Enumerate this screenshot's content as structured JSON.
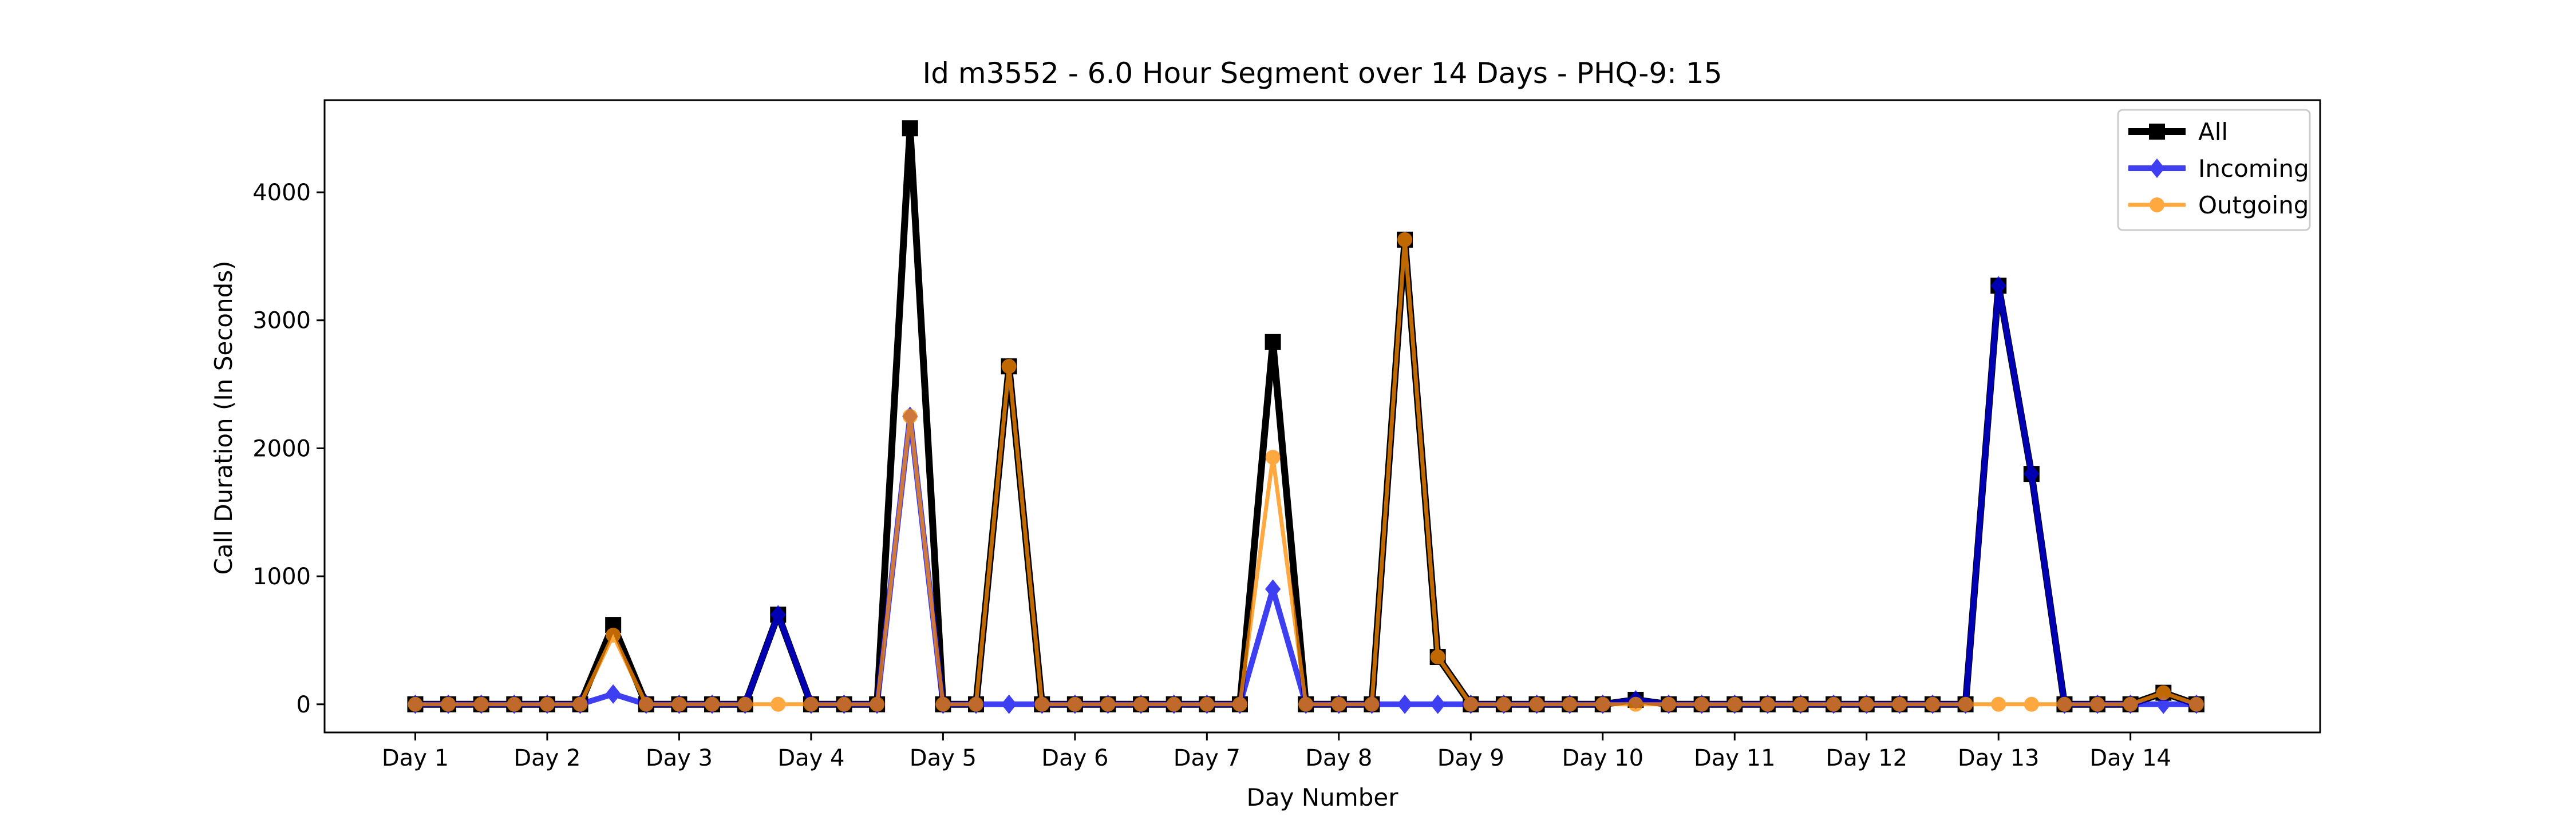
{
  "chart_data": {
    "type": "line",
    "title": "Id m3552 - 6.0 Hour Segment over 14 Days - PHQ-9: 15",
    "xlabel": "Day Number",
    "ylabel": "Call Duration (In Seconds)",
    "ylim": [
      -220,
      4720
    ],
    "xlim": [
      -2.75,
      57.75
    ],
    "yticks": [
      0,
      1000,
      2000,
      3000,
      4000
    ],
    "xticks": [
      "Day 1",
      "Day 2",
      "Day 3",
      "Day 4",
      "Day 5",
      "Day 6",
      "Day 7",
      "Day 8",
      "Day 9",
      "Day 10",
      "Day 11",
      "Day 12",
      "Day 13",
      "Day 14"
    ],
    "grid": false,
    "legend_position": "top-right",
    "series": [
      {
        "name": "All",
        "color": "#000000",
        "marker": "square",
        "values": [
          0,
          0,
          0,
          0,
          0,
          0,
          620,
          0,
          0,
          0,
          0,
          700,
          0,
          0,
          0,
          4500,
          0,
          0,
          2640,
          0,
          0,
          0,
          0,
          0,
          0,
          0,
          2830,
          0,
          0,
          0,
          3630,
          370,
          0,
          0,
          0,
          0,
          0,
          35,
          0,
          0,
          0,
          0,
          0,
          0,
          0,
          0,
          0,
          0,
          3270,
          1800,
          0,
          0,
          0,
          90,
          0
        ]
      },
      {
        "name": "Incoming",
        "color": "#0000ee",
        "marker": "diamond",
        "values": [
          0,
          0,
          0,
          0,
          0,
          0,
          80,
          0,
          0,
          0,
          0,
          700,
          0,
          0,
          0,
          2250,
          0,
          0,
          0,
          0,
          0,
          0,
          0,
          0,
          0,
          0,
          900,
          0,
          0,
          0,
          0,
          0,
          0,
          0,
          0,
          0,
          0,
          35,
          0,
          0,
          0,
          0,
          0,
          0,
          0,
          0,
          0,
          0,
          3270,
          1800,
          0,
          0,
          0,
          0,
          0
        ]
      },
      {
        "name": "Outgoing",
        "color": "#ff8c00",
        "marker": "circle",
        "values": [
          0,
          0,
          0,
          0,
          0,
          0,
          540,
          0,
          0,
          0,
          0,
          0,
          0,
          0,
          0,
          2250,
          0,
          0,
          2640,
          0,
          0,
          0,
          0,
          0,
          0,
          0,
          1930,
          0,
          0,
          0,
          3630,
          370,
          0,
          0,
          0,
          0,
          0,
          0,
          0,
          0,
          0,
          0,
          0,
          0,
          0,
          0,
          0,
          0,
          0,
          0,
          0,
          0,
          0,
          90,
          0
        ]
      }
    ]
  }
}
